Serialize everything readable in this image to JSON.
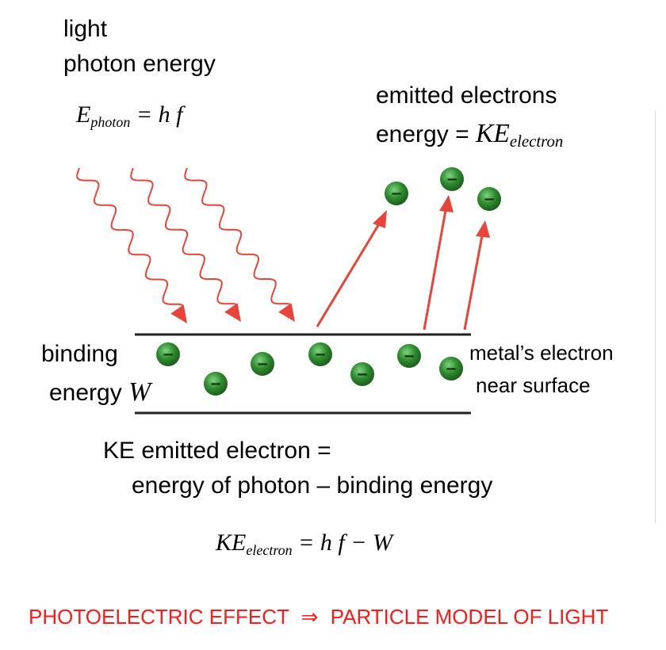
{
  "labels": {
    "light": "light",
    "photon_energy": "photon energy",
    "emitted_electrons": "emitted electrons",
    "energy_eq": "energy =",
    "binding": "binding",
    "energy_word": "energy",
    "metal_electron": "metal’s electron",
    "near_surface": "near surface",
    "ke_emitted": "KE emitted electron =",
    "energy_of_photon": "energy of photon – binding energy",
    "footer_left": "PHOTOELECTRIC EFFECT",
    "footer_arrow": "⇒",
    "footer_right": "PARTICLE MODEL OF LIGHT"
  },
  "formulas": {
    "photon_E": "E",
    "photon_sub": "photon",
    "photon_rhs": "= h f",
    "ke_label_KE": "KE",
    "ke_label_sub": "electron",
    "binding_W": "W",
    "ke_eq_KE": "KE",
    "ke_eq_sub": "electron",
    "ke_eq_rhs": "= h f − W"
  },
  "colors": {
    "arrow": "#e8443a",
    "electron": "#2e8b2e",
    "electron_dark": "#1c5e1c",
    "surface": "#222222",
    "footer": "#ff1a1a"
  },
  "electron_sign": "−"
}
